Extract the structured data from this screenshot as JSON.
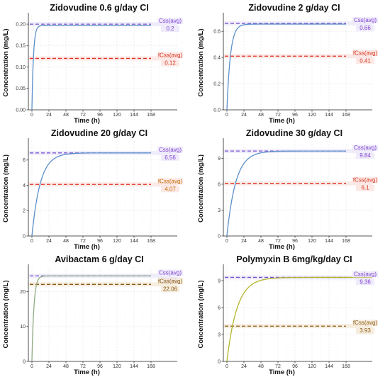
{
  "chart_data": [
    {
      "type": "line",
      "title": "Zidovudine 0.6 g/day CI",
      "xlabel": "Time (h)",
      "ylabel": "Concentration (mg/L)",
      "xticks": [
        "0",
        "24",
        "48",
        "72",
        "96",
        "120",
        "144",
        "168"
      ],
      "yticks": [
        "0.00",
        "0.05",
        "0.10",
        "0.15",
        "0.20"
      ],
      "xlim": [
        -5,
        205
      ],
      "ylim": [
        0,
        0.22
      ],
      "curve": {
        "css": 0.197,
        "k": 0.45,
        "t_end": 168,
        "color": "#5b8fc9"
      },
      "references": [
        {
          "name": "Css(avg)",
          "value": 0.2,
          "label": "0.2",
          "color": "#7e3fd0",
          "line_color": "#7755cc",
          "band": "#ece8fa"
        },
        {
          "name": "fCss(avg)",
          "value": 0.12,
          "label": "0.12",
          "color": "#d9341f",
          "line_color": "#e03020",
          "band": "#fbe5e2"
        }
      ]
    },
    {
      "type": "line",
      "title": "Zidovudine 2 g/day CI",
      "xlabel": "Time (h)",
      "ylabel": "Concentration (mg/L)",
      "xticks": [
        "0",
        "24",
        "48",
        "72",
        "96",
        "120",
        "144",
        "168"
      ],
      "yticks": [
        "0.0",
        "0.2",
        "0.4",
        "0.6"
      ],
      "xlim": [
        -5,
        205
      ],
      "ylim": [
        0,
        0.72
      ],
      "curve": {
        "css": 0.655,
        "k": 0.2,
        "t_end": 168,
        "color": "#5b8fc9"
      },
      "references": [
        {
          "name": "Css(avg)",
          "value": 0.66,
          "label": "0.66",
          "color": "#7e3fd0",
          "line_color": "#7755cc",
          "band": "#ece8fa"
        },
        {
          "name": "fCss(avg)",
          "value": 0.41,
          "label": "0.41",
          "color": "#d9341f",
          "line_color": "#e03020",
          "band": "#fbe5e2"
        }
      ]
    },
    {
      "type": "line",
      "title": "Zidovudine 20 g/day CI",
      "xlabel": "Time (h)",
      "ylabel": "Concentration (mg/L)",
      "xticks": [
        "0",
        "24",
        "48",
        "72",
        "96",
        "120",
        "144",
        "168"
      ],
      "yticks": [
        "0",
        "2",
        "4",
        "6"
      ],
      "xlim": [
        -5,
        205
      ],
      "ylim": [
        0,
        7.5
      ],
      "curve": {
        "css": 6.56,
        "k": 0.085,
        "t_end": 168,
        "color": "#5b8fc9"
      },
      "references": [
        {
          "name": "Css(avg)",
          "value": 6.56,
          "label": "6.56",
          "color": "#7e3fd0",
          "line_color": "#7755cc",
          "band": "#ece8fa"
        },
        {
          "name": "fCss(avg)",
          "value": 4.07,
          "label": "4.07",
          "color": "#c46a00",
          "line_color": "#e03020",
          "band": "#fbe5e2"
        }
      ]
    },
    {
      "type": "line",
      "title": "Zidovudine 30 g/day CI",
      "xlabel": "Time (h)",
      "ylabel": "Concentration (mg/L)",
      "xticks": [
        "0",
        "24",
        "48",
        "72",
        "96",
        "120",
        "144",
        "168"
      ],
      "yticks": [
        "0",
        "3",
        "6",
        "9"
      ],
      "xlim": [
        -5,
        205
      ],
      "ylim": [
        0,
        11
      ],
      "curve": {
        "css": 9.84,
        "k": 0.08,
        "t_end": 168,
        "color": "#5b8fc9"
      },
      "references": [
        {
          "name": "Css(avg)",
          "value": 9.84,
          "label": "9.84",
          "color": "#7e3fd0",
          "line_color": "#7755cc",
          "band": "#ece8fa"
        },
        {
          "name": "fCss(avg)",
          "value": 6.1,
          "label": "6.1",
          "color": "#d9341f",
          "line_color": "#e03020",
          "band": "#fbe5e2"
        }
      ]
    },
    {
      "type": "line",
      "title": "Avibactam 6 g/day CI",
      "xlabel": "Time (h)",
      "ylabel": "Concentration (mg/L)",
      "xticks": [
        "0",
        "24",
        "48",
        "72",
        "96",
        "120",
        "144",
        "168"
      ],
      "yticks": [
        "0",
        "10",
        "20"
      ],
      "xlim": [
        -5,
        205
      ],
      "ylim": [
        0,
        27
      ],
      "curve": {
        "css": 24.51,
        "k": 0.35,
        "t_end": 168,
        "color": "#8eaa82"
      },
      "references": [
        {
          "name": "Css(avg)",
          "value": 24.51,
          "label": "24.51",
          "color": "#7e3fd0",
          "line_color": "#7755cc",
          "band": "#ece8fa"
        },
        {
          "name": "fCss(avg)",
          "value": 22.06,
          "label": "22.06",
          "color": "#8a5a14",
          "line_color": "#8a5a14",
          "band": "#f4ead8"
        }
      ]
    },
    {
      "type": "line",
      "title": "Polymyxin B 6mg/kg/day CI",
      "xlabel": "Time (h)",
      "ylabel": "Concentration (mg/L)",
      "xticks": [
        "0",
        "24",
        "48",
        "72",
        "96",
        "120",
        "144",
        "168"
      ],
      "yticks": [
        "0",
        "3",
        "6",
        "9"
      ],
      "xlim": [
        -5,
        205
      ],
      "ylim": [
        0,
        10.5
      ],
      "curve": {
        "css": 9.36,
        "k": 0.07,
        "t_end": 205,
        "color": "#b3b52a"
      },
      "references": [
        {
          "name": "Css(avg)",
          "value": 9.36,
          "label": "9.36",
          "color": "#7e3fd0",
          "line_color": "#7755cc",
          "band": "#ece8fa"
        },
        {
          "name": "fCss(avg)",
          "value": 3.93,
          "label": "3.93",
          "color": "#8a5a14",
          "line_color": "#8a5a14",
          "band": "#f4ead8"
        }
      ]
    }
  ]
}
